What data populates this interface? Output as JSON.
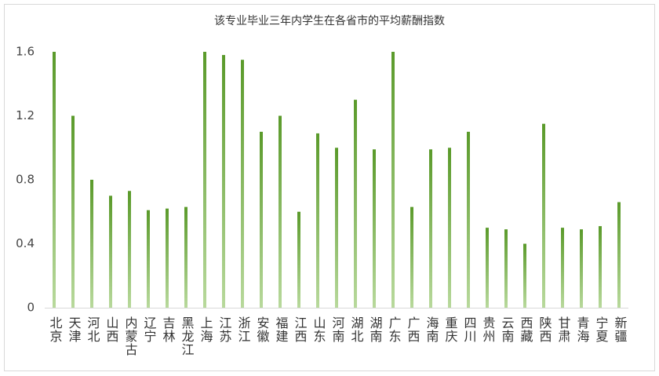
{
  "chart_data": {
    "type": "bar",
    "title": "该专业毕业三年内学生在各省市的平均薪酬指数",
    "categories": [
      "北京",
      "天津",
      "河北",
      "山西",
      "内蒙古",
      "辽宁",
      "吉林",
      "黑龙江",
      "上海",
      "江苏",
      "浙江",
      "安徽",
      "福建",
      "江西",
      "山东",
      "河南",
      "湖北",
      "湖南",
      "广东",
      "广西",
      "海南",
      "重庆",
      "四川",
      "贵州",
      "云南",
      "西藏",
      "陕西",
      "甘肃",
      "青海",
      "宁夏",
      "新疆"
    ],
    "values": [
      1.6,
      1.2,
      0.8,
      0.7,
      0.73,
      0.61,
      0.62,
      0.63,
      1.6,
      1.58,
      1.55,
      1.1,
      1.2,
      0.6,
      1.09,
      1.0,
      1.3,
      0.99,
      1.6,
      0.63,
      0.99,
      1.0,
      1.1,
      0.5,
      0.49,
      0.4,
      1.15,
      0.5,
      0.49,
      0.51,
      0.66
    ],
    "color": "#5a9a2a",
    "ylim": [
      0,
      1.6
    ],
    "yticks": [
      0,
      0.4,
      0.8,
      1.2,
      1.6
    ],
    "grid": false
  }
}
